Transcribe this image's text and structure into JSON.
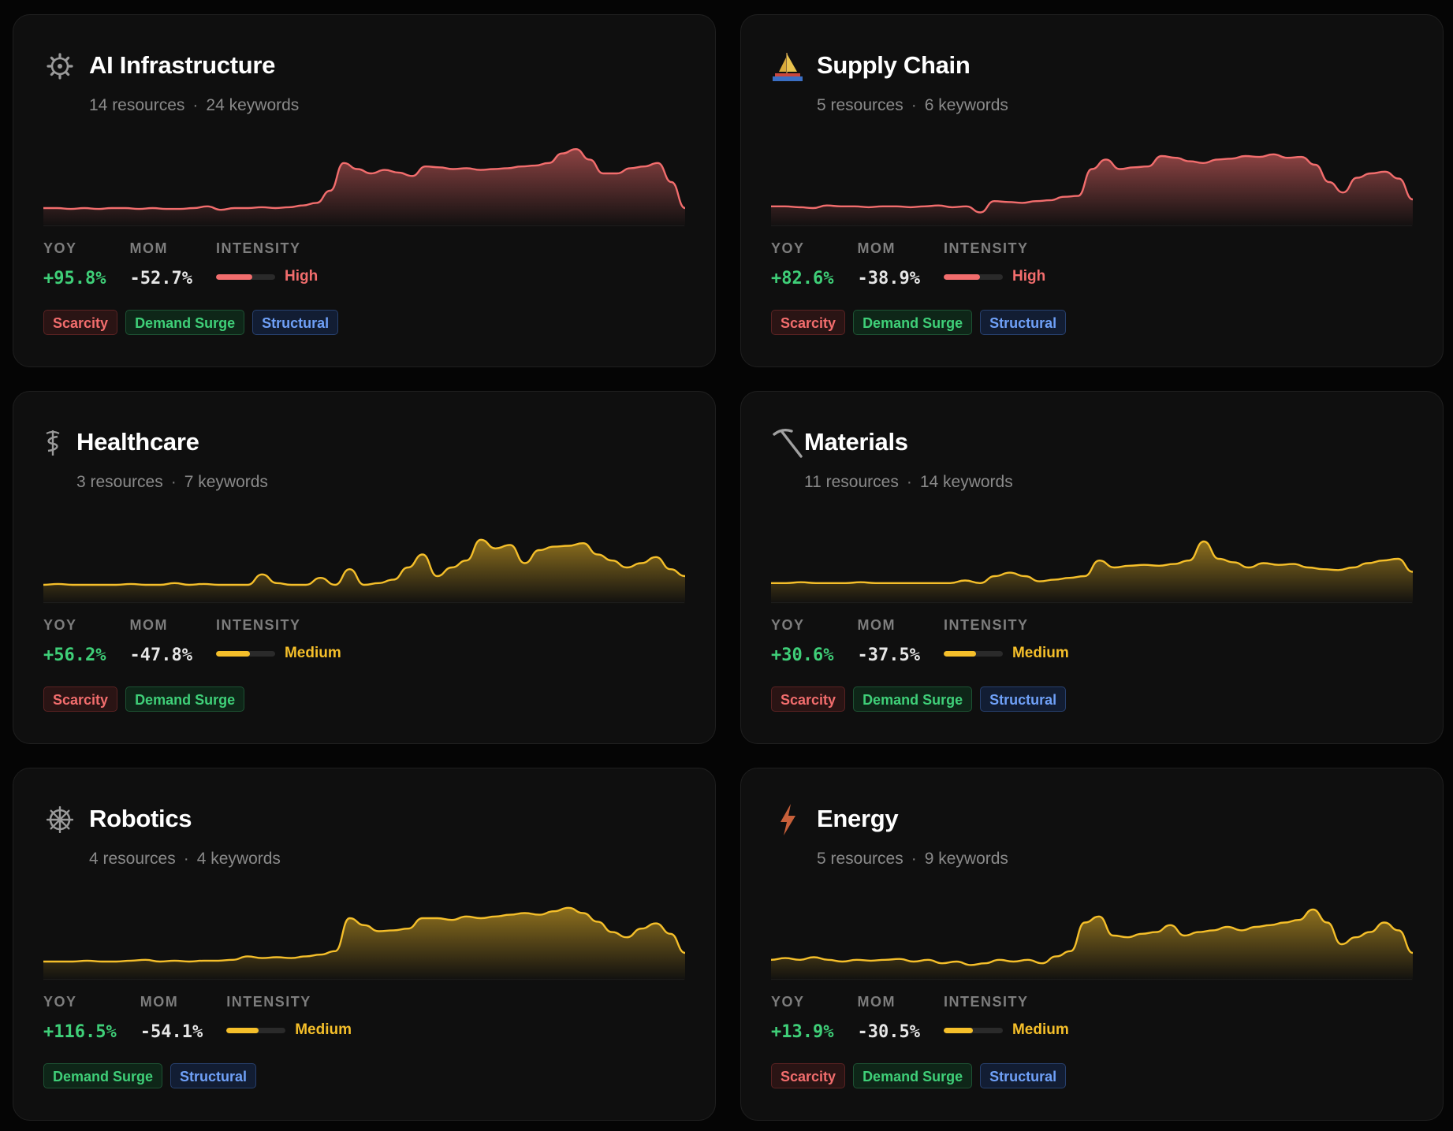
{
  "colors": {
    "high": "#f26d6d",
    "medium": "#f5bf2a",
    "positive": "#3fcf78"
  },
  "labels": {
    "yoy": "YOY",
    "mom": "MOM",
    "intensity": "INTENSITY"
  },
  "cards": [
    {
      "icon": "gear-icon",
      "title": "AI Infrastructure",
      "resources": "14 resources",
      "keywords": "24 keywords",
      "yoy": "+95.8%",
      "mom": "-52.7%",
      "intensity": "High",
      "intensity_level": 0.62,
      "color": "#f26d6d",
      "tags": [
        "Scarcity",
        "Demand Surge",
        "Structural"
      ],
      "trend": [
        10,
        10,
        9,
        10,
        9,
        10,
        10,
        9,
        10,
        9,
        9,
        10,
        12,
        8,
        10,
        10,
        11,
        10,
        11,
        13,
        16,
        30,
        62,
        55,
        50,
        54,
        51,
        47,
        58,
        57,
        55,
        56,
        54,
        55,
        56,
        58,
        59,
        62,
        73,
        78,
        66,
        50,
        50,
        56,
        58,
        62,
        40,
        10
      ]
    },
    {
      "icon": "sailboat-icon",
      "title": "Supply Chain",
      "resources": "5 resources",
      "keywords": "6 keywords",
      "yoy": "+82.6%",
      "mom": "-38.9%",
      "intensity": "High",
      "intensity_level": 0.62,
      "color": "#f26d6d",
      "tags": [
        "Scarcity",
        "Demand Surge",
        "Structural"
      ],
      "trend": [
        12,
        12,
        11,
        10,
        13,
        12,
        12,
        11,
        12,
        12,
        11,
        12,
        13,
        11,
        12,
        5,
        18,
        17,
        16,
        18,
        19,
        23,
        24,
        55,
        66,
        55,
        57,
        58,
        70,
        68,
        64,
        62,
        66,
        67,
        70,
        69,
        72,
        68,
        69,
        60,
        40,
        28,
        45,
        50,
        52,
        44,
        20
      ]
    },
    {
      "icon": "caduceus-icon",
      "title": "Healthcare",
      "resources": "3 resources",
      "keywords": "7 keywords",
      "yoy": "+56.2%",
      "mom": "-47.8%",
      "intensity": "Medium",
      "intensity_level": 0.58,
      "color": "#f5bf2a",
      "tags": [
        "Scarcity",
        "Demand Surge"
      ],
      "trend": [
        10,
        11,
        10,
        10,
        10,
        10,
        11,
        10,
        10,
        12,
        10,
        11,
        10,
        10,
        10,
        22,
        12,
        10,
        10,
        18,
        10,
        28,
        10,
        12,
        16,
        30,
        45,
        20,
        30,
        38,
        62,
        52,
        56,
        35,
        50,
        54,
        55,
        58,
        45,
        38,
        30,
        35,
        42,
        28,
        20
      ]
    },
    {
      "icon": "pickaxe-icon",
      "title": "Materials",
      "resources": "11 resources",
      "keywords": "14 keywords",
      "yoy": "+30.6%",
      "mom": "-37.5%",
      "intensity": "Medium",
      "intensity_level": 0.55,
      "color": "#f5bf2a",
      "tags": [
        "Scarcity",
        "Demand Surge",
        "Structural"
      ],
      "trend": [
        12,
        12,
        13,
        12,
        12,
        12,
        13,
        12,
        12,
        12,
        12,
        12,
        12,
        15,
        12,
        20,
        24,
        20,
        14,
        16,
        18,
        20,
        38,
        30,
        32,
        33,
        32,
        34,
        38,
        60,
        40,
        36,
        30,
        35,
        33,
        34,
        30,
        28,
        27,
        30,
        35,
        38,
        40,
        25
      ]
    },
    {
      "icon": "wheel-icon",
      "title": "Robotics",
      "resources": "4 resources",
      "keywords": "4 keywords",
      "yoy": "+116.5%",
      "mom": "-54.1%",
      "intensity": "Medium",
      "intensity_level": 0.55,
      "color": "#f5bf2a",
      "tags": [
        "Demand Surge",
        "Structural"
      ],
      "trend": [
        10,
        10,
        10,
        11,
        10,
        10,
        11,
        12,
        10,
        11,
        10,
        11,
        11,
        12,
        16,
        14,
        15,
        14,
        16,
        18,
        22,
        60,
        52,
        45,
        46,
        48,
        60,
        60,
        58,
        62,
        60,
        62,
        64,
        66,
        64,
        68,
        72,
        66,
        56,
        44,
        38,
        48,
        54,
        42,
        20
      ]
    },
    {
      "icon": "lightning-icon",
      "title": "Energy",
      "resources": "5 resources",
      "keywords": "9 keywords",
      "yoy": "+13.9%",
      "mom": "-30.5%",
      "intensity": "Medium",
      "intensity_level": 0.5,
      "color": "#f5bf2a",
      "tags": [
        "Scarcity",
        "Demand Surge",
        "Structural"
      ],
      "trend": [
        12,
        14,
        12,
        15,
        12,
        10,
        12,
        11,
        12,
        13,
        10,
        12,
        8,
        10,
        6,
        8,
        12,
        10,
        12,
        8,
        16,
        22,
        55,
        62,
        40,
        38,
        42,
        44,
        52,
        40,
        44,
        46,
        50,
        46,
        50,
        52,
        55,
        58,
        70,
        55,
        30,
        38,
        44,
        55,
        46,
        20
      ]
    }
  ]
}
